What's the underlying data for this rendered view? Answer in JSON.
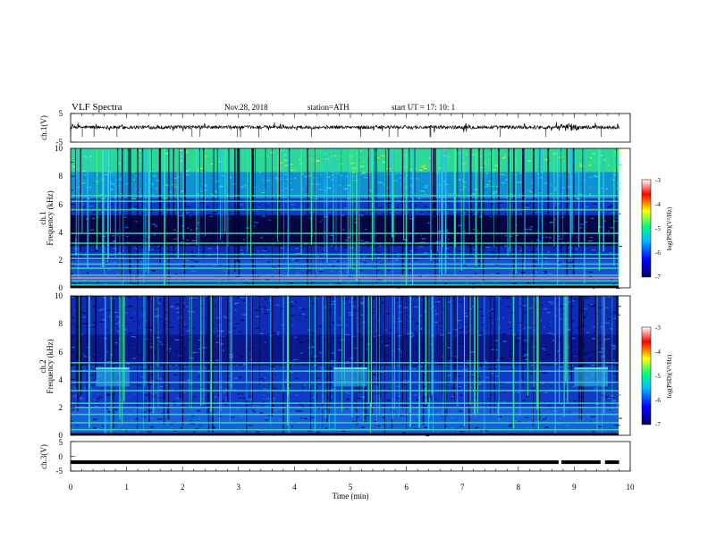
{
  "header": {
    "title": "VLF  Spectra",
    "date": "Nov.28, 2018",
    "station": "station=ATH",
    "start": "start  UT  =    17: 10: 1"
  },
  "chart_data": [
    {
      "type": "line",
      "name": "ch1-waveform",
      "ylabel": "ch.1(V)",
      "ylim": [
        -5,
        5
      ],
      "yticks": [
        "5",
        "-5"
      ],
      "xlim": [
        0,
        10
      ],
      "baseline_v": 0.2,
      "line_color": "#000000"
    },
    {
      "type": "heatmap",
      "name": "ch1-spectrogram",
      "ylabel_lines": [
        "ch.1",
        "Frequency  (kHz)"
      ],
      "ylim": [
        0,
        10
      ],
      "yticks": [
        "0",
        "2",
        "4",
        "6",
        "8",
        "10"
      ],
      "xlim": [
        0,
        10
      ],
      "colorbar": {
        "label": "log(PSD)(V²/Hz)",
        "range": [
          -7,
          -3
        ],
        "ticks": [
          "-3",
          "-4",
          "-5",
          "-6",
          "-7"
        ],
        "colors": [
          "#000066",
          "#0000ff",
          "#00c0ff",
          "#00ff80",
          "#ffff00",
          "#ff0000",
          "#ffffff"
        ]
      },
      "noise_bands_khz": [
        0.2,
        0.5,
        0.9,
        1.4,
        1.7,
        2.1,
        2.4,
        3.2,
        3.9,
        5.6,
        6.2,
        6.6
      ],
      "bright_band_khz": 0.7
    },
    {
      "type": "heatmap",
      "name": "ch2-spectrogram",
      "ylabel_lines": [
        "ch.2",
        "Frequency  (kHz)"
      ],
      "ylim": [
        0,
        10
      ],
      "yticks": [
        "0",
        "2",
        "4",
        "6",
        "8",
        "10"
      ],
      "xlim": [
        0,
        10
      ],
      "colorbar": {
        "label": "log(PSD)(V²/Hz)",
        "range": [
          -7,
          -3
        ],
        "ticks": [
          "-3",
          "-4",
          "-5",
          "-6",
          "-7"
        ],
        "colors": [
          "#000066",
          "#0000ff",
          "#00c0ff",
          "#00ff80",
          "#ffff00",
          "#ff0000",
          "#ffffff"
        ]
      },
      "noise_bands_khz": [
        0.4,
        0.9,
        1.5,
        2.0,
        2.3,
        3.2,
        3.8,
        4.6,
        5.2
      ],
      "transmitter_bursts": [
        {
          "t_start_min": 0.45,
          "t_end_min": 1.05,
          "f_low_khz": 3.5,
          "f_high_khz": 4.8
        },
        {
          "t_start_min": 4.7,
          "t_end_min": 5.3,
          "f_low_khz": 3.5,
          "f_high_khz": 4.8
        },
        {
          "t_start_min": 9.0,
          "t_end_min": 9.6,
          "f_low_khz": 3.5,
          "f_high_khz": 4.8
        }
      ]
    },
    {
      "type": "line",
      "name": "ch3-waveform",
      "ylabel": "ch.3(V)",
      "ylim": [
        -5,
        5
      ],
      "yticks": [
        "5",
        "0",
        "-5"
      ],
      "xlim": [
        0,
        10
      ],
      "xticks": [
        "0",
        "1",
        "2",
        "3",
        "4",
        "5",
        "6",
        "7",
        "8",
        "9",
        "10"
      ],
      "xlabel": "Time  (min)",
      "level_v": -2,
      "data_end_min": 9.8,
      "gaps_min": [
        8.72,
        8.77,
        9.47,
        9.55
      ]
    }
  ]
}
